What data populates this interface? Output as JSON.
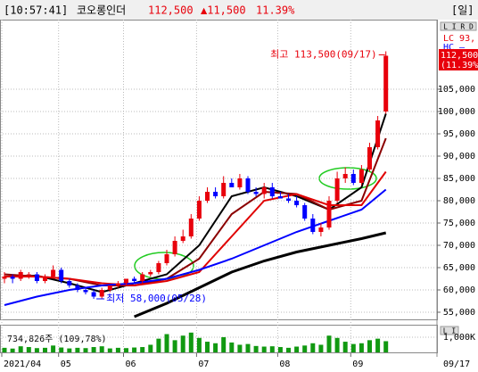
{
  "header": {
    "time": "[10:57:41]",
    "name": "코오롱인더",
    "price": "112,500",
    "change": "▲11,500",
    "rate": "11.39%",
    "period": "[일]"
  },
  "chart_data": {
    "type": "candlestick",
    "x": [
      0,
      1,
      2,
      3,
      4,
      5,
      6,
      7,
      8,
      9,
      10,
      11,
      12,
      13,
      14,
      15,
      16,
      17,
      18,
      19,
      20,
      21,
      22,
      23,
      24,
      25,
      26,
      27,
      28,
      29,
      30,
      31,
      32,
      33,
      34,
      35,
      36,
      37,
      38,
      39,
      40,
      41,
      42,
      43,
      44,
      45,
      46,
      47
    ],
    "open": [
      62500,
      63000,
      62500,
      63500,
      63500,
      62000,
      63000,
      64500,
      62000,
      61000,
      60000,
      59500,
      58500,
      60000,
      61000,
      61500,
      62500,
      62000,
      63500,
      64000,
      66000,
      68000,
      71000,
      72000,
      76000,
      80000,
      82000,
      81000,
      84000,
      83000,
      85000,
      82000,
      81500,
      83000,
      81000,
      80500,
      80000,
      79000,
      76000,
      73000,
      74000,
      80000,
      85000,
      86000,
      84000,
      87000,
      92000,
      100000
    ],
    "high": [
      64000,
      63500,
      64500,
      64000,
      64000,
      63500,
      65500,
      65000,
      62500,
      61500,
      60500,
      60000,
      60500,
      61000,
      62000,
      62500,
      63000,
      64000,
      64500,
      66500,
      69000,
      72000,
      73500,
      77000,
      81000,
      83000,
      83000,
      85500,
      85000,
      86000,
      85500,
      83000,
      84000,
      84000,
      82000,
      81500,
      81000,
      79500,
      77000,
      75000,
      81000,
      86500,
      87500,
      87000,
      88000,
      93000,
      99000,
      113500
    ],
    "low": [
      61500,
      61500,
      62000,
      62500,
      61500,
      61500,
      62500,
      61500,
      60500,
      59500,
      59000,
      58000,
      58000,
      59500,
      60500,
      61000,
      61500,
      61500,
      63000,
      63500,
      65500,
      67500,
      70500,
      71500,
      75500,
      79500,
      80500,
      80500,
      83000,
      82500,
      81500,
      81000,
      80500,
      80500,
      80500,
      79500,
      78500,
      75500,
      72500,
      72000,
      73500,
      79500,
      84000,
      83500,
      83500,
      86500,
      91500,
      99500
    ],
    "close": [
      63000,
      62500,
      64000,
      63500,
      62000,
      63000,
      64500,
      62000,
      61000,
      60000,
      59500,
      58500,
      60000,
      61000,
      61500,
      62500,
      62000,
      63500,
      64000,
      66000,
      68000,
      71000,
      72000,
      76000,
      80000,
      82000,
      81000,
      84000,
      83000,
      85000,
      82000,
      81500,
      83000,
      81000,
      80500,
      80000,
      79000,
      76000,
      73000,
      74000,
      80000,
      85000,
      86000,
      84000,
      87000,
      92000,
      98000,
      112500
    ],
    "colors": {
      "up": "#e8000b",
      "down": "#0000ff"
    },
    "xlim": [
      -0.5,
      52.5
    ],
    "xticks": [
      {
        "value": 0,
        "label": "2021/04"
      },
      {
        "value": 7,
        "label": "05"
      },
      {
        "value": 15,
        "label": "06"
      },
      {
        "value": 24,
        "label": "07"
      },
      {
        "value": 34,
        "label": "08"
      },
      {
        "value": 43,
        "label": "09"
      }
    ],
    "ylim": [
      53600,
      120600
    ],
    "yticks": [
      {
        "value": 55000,
        "label": "55,000"
      },
      {
        "value": 60000,
        "label": "60,000"
      },
      {
        "value": 65000,
        "label": "65,000"
      },
      {
        "value": 70000,
        "label": "70,000"
      },
      {
        "value": 75000,
        "label": "75,000"
      },
      {
        "value": 80000,
        "label": "80,000"
      },
      {
        "value": 85000,
        "label": "85,000"
      },
      {
        "value": 90000,
        "label": "90,000"
      },
      {
        "value": 95000,
        "label": "95,000"
      },
      {
        "value": 100000,
        "label": "100,000"
      },
      {
        "value": 105000,
        "label": "105,000"
      }
    ],
    "grid": true,
    "moving_averages": [
      {
        "color": "#000000",
        "x": [
          0,
          4,
          8,
          12,
          16,
          20,
          24,
          28,
          32,
          36,
          40,
          44,
          47
        ],
        "values": [
          63000,
          63200,
          61500,
          59500,
          61500,
          63500,
          70000,
          81000,
          83000,
          81000,
          78000,
          83000,
          99500
        ]
      },
      {
        "color": "#8b0000",
        "x": [
          0,
          4,
          8,
          12,
          16,
          20,
          24,
          28,
          32,
          36,
          40,
          44,
          47
        ],
        "values": [
          63500,
          63000,
          62500,
          61000,
          61000,
          62500,
          67000,
          77000,
          82000,
          81500,
          78000,
          80000,
          94000
        ]
      },
      {
        "color": "#e00000",
        "x": [
          0,
          4,
          8,
          12,
          16,
          20,
          24,
          28,
          32,
          36,
          40,
          44,
          47
        ],
        "values": [
          63000,
          63000,
          62500,
          61500,
          61000,
          62000,
          64000,
          72000,
          80000,
          81500,
          79000,
          79000,
          86500
        ]
      },
      {
        "color": "#0000ff",
        "x": [
          0,
          4,
          8,
          12,
          16,
          20,
          24,
          28,
          32,
          36,
          40,
          44,
          47
        ],
        "values": [
          56600,
          58500,
          60000,
          61000,
          61500,
          62500,
          64500,
          67000,
          70000,
          73000,
          75500,
          78000,
          82500
        ]
      },
      {
        "color": "#000000",
        "x": [
          0,
          4,
          8,
          12,
          16,
          20,
          24,
          28,
          32,
          36,
          40,
          44,
          47
        ],
        "values": [
          null,
          null,
          null,
          null,
          54000,
          57000,
          60500,
          64000,
          66500,
          68500,
          70000,
          71500,
          72800
        ]
      }
    ],
    "annotations": [
      {
        "text": "최고 113,500(09/17)",
        "color": "#e8000b"
      },
      {
        "text": "최저 58,000(05/28)",
        "color": "#0000ff"
      }
    ],
    "last_price_label": "112,500",
    "last_rate_label": "(11.39%)",
    "lc_label": "LC 93,",
    "hc_label": "HC –",
    "date_label": "09/17",
    "volume": {
      "type": "bar",
      "label": "734,826주 (109,78%)",
      "color": "#119911",
      "values": [
        300000,
        250000,
        400000,
        350000,
        280000,
        300000,
        450000,
        320000,
        260000,
        300000,
        280000,
        350000,
        400000,
        260000,
        300000,
        280000,
        320000,
        350000,
        500000,
        900000,
        1200000,
        800000,
        1100000,
        1300000,
        950000,
        700000,
        600000,
        1000000,
        650000,
        500000,
        550000,
        420000,
        380000,
        400000,
        350000,
        300000,
        380000,
        450000,
        600000,
        500000,
        1100000,
        950000,
        700000,
        550000,
        600000,
        800000,
        900000,
        734826
      ],
      "ylim": [
        0,
        1700000
      ],
      "yticks": [
        {
          "value": 1000000,
          "label": "1,000K"
        }
      ]
    }
  }
}
